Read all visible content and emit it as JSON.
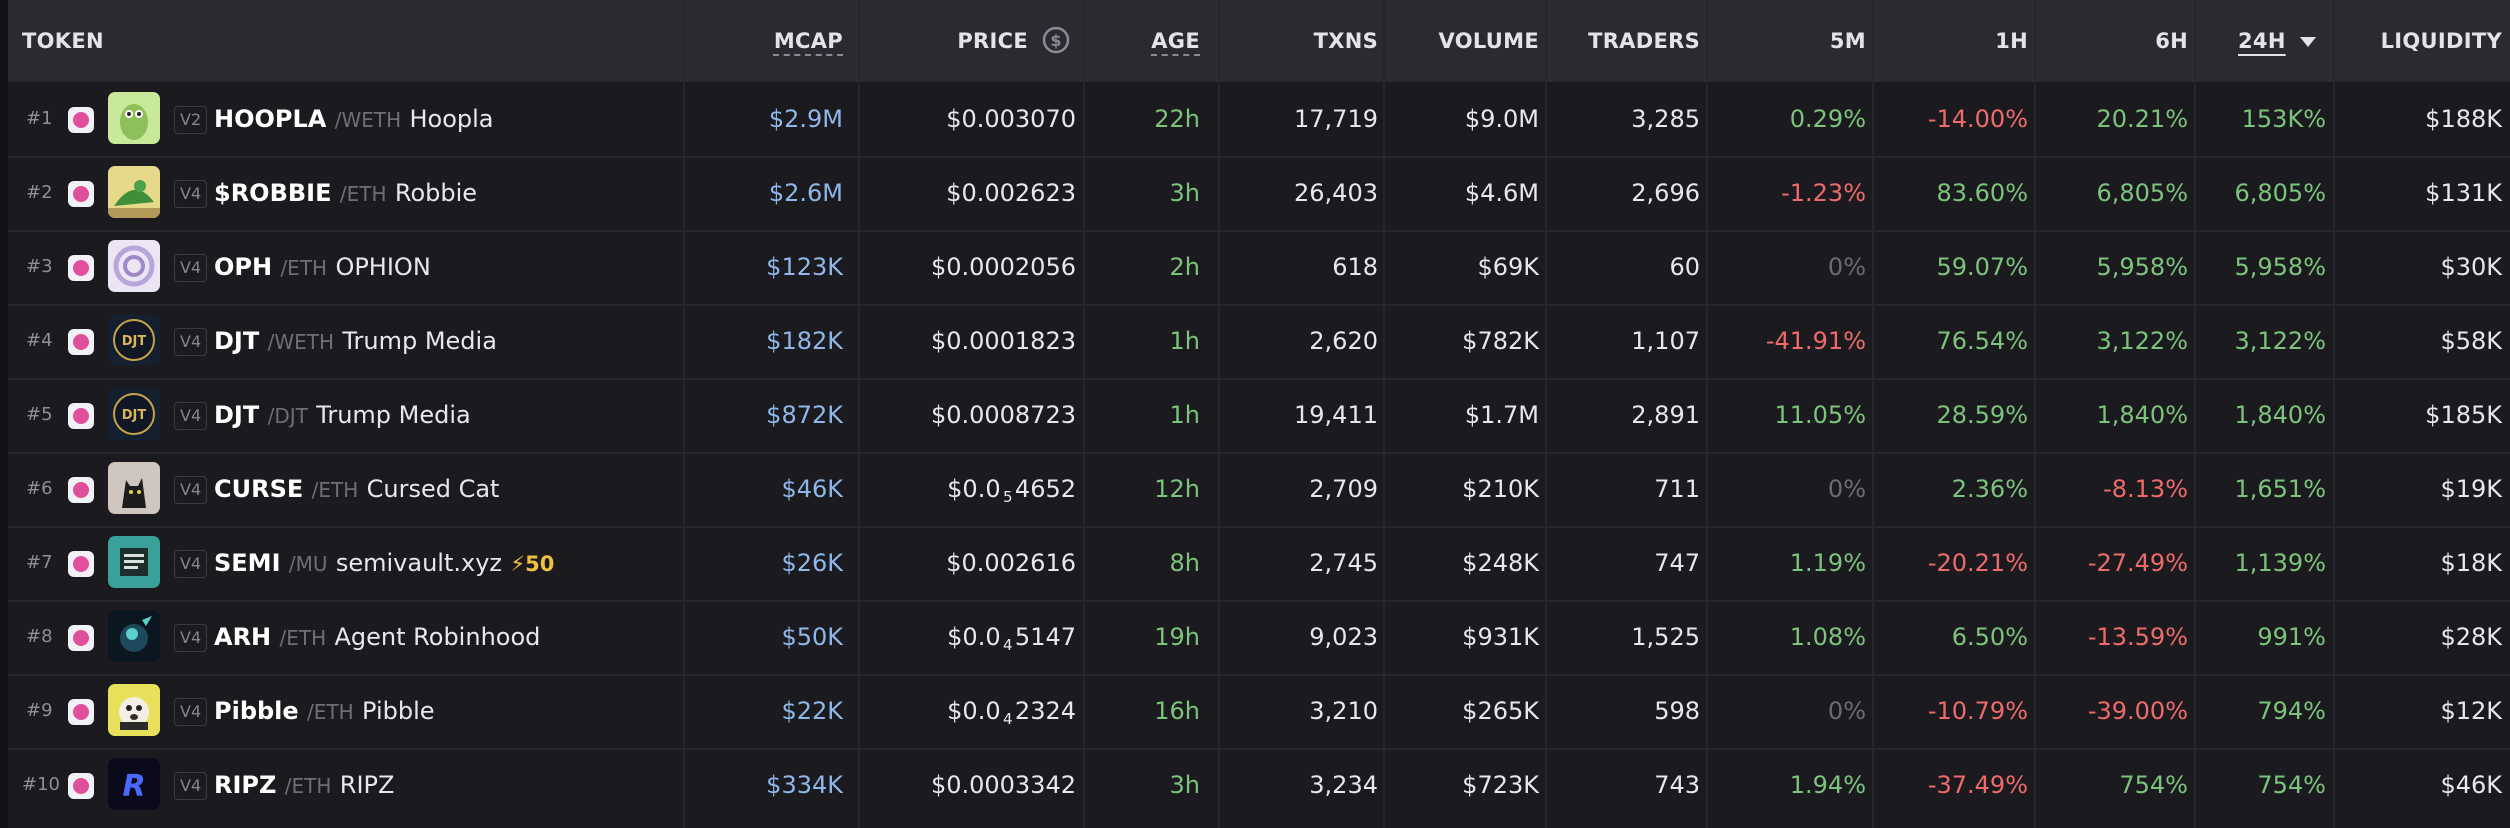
{
  "header": {
    "token": "TOKEN",
    "mcap": "MCAP",
    "price": "PRICE",
    "price_icon": "dollar-circle-icon",
    "age": "AGE",
    "txns": "TXNS",
    "volume": "VOLUME",
    "traders": "TRADERS",
    "m5": "5M",
    "h1": "1H",
    "h6": "6H",
    "h24": "24H",
    "sort_icon": "caret-down-icon",
    "liquidity": "LIQUIDITY"
  },
  "rows": [
    {
      "rank": "#1",
      "dex_icon": "uniswap-icon",
      "version": "V2",
      "symbol": "HOOPLA",
      "pair": "/WETH",
      "name": "Hoopla",
      "mcap": "$2.9M",
      "price": "$0.003070",
      "age": "22h",
      "txns": "17,719",
      "volume": "$9.0M",
      "traders": "3,285",
      "m5": "0.29%",
      "h1": "-14.00%",
      "h6": "20.21%",
      "h24": "153K%",
      "liquidity": "$188K"
    },
    {
      "rank": "#2",
      "dex_icon": "uniswap-icon",
      "version": "V4",
      "symbol": "$ROBBIE",
      "pair": "/ETH",
      "name": "Robbie",
      "mcap": "$2.6M",
      "price": "$0.002623",
      "age": "3h",
      "txns": "26,403",
      "volume": "$4.6M",
      "traders": "2,696",
      "m5": "-1.23%",
      "h1": "83.60%",
      "h6": "6,805%",
      "h24": "6,805%",
      "liquidity": "$131K"
    },
    {
      "rank": "#3",
      "dex_icon": "uniswap-icon",
      "version": "V4",
      "symbol": "OPH",
      "pair": "/ETH",
      "name": "OPHION",
      "mcap": "$123K",
      "price": "$0.0002056",
      "age": "2h",
      "txns": "618",
      "volume": "$69K",
      "traders": "60",
      "m5": "0%",
      "h1": "59.07%",
      "h6": "5,958%",
      "h24": "5,958%",
      "liquidity": "$30K"
    },
    {
      "rank": "#4",
      "dex_icon": "uniswap-icon",
      "version": "V4",
      "symbol": "DJT",
      "pair": "/WETH",
      "name": "Trump Media",
      "mcap": "$182K",
      "price": "$0.0001823",
      "age": "1h",
      "txns": "2,620",
      "volume": "$782K",
      "traders": "1,107",
      "m5": "-41.91%",
      "h1": "76.54%",
      "h6": "3,122%",
      "h24": "3,122%",
      "liquidity": "$58K"
    },
    {
      "rank": "#5",
      "dex_icon": "uniswap-icon",
      "version": "V4",
      "symbol": "DJT",
      "pair": "/DJT",
      "name": "Trump Media",
      "mcap": "$872K",
      "price": "$0.0008723",
      "age": "1h",
      "txns": "19,411",
      "volume": "$1.7M",
      "traders": "2,891",
      "m5": "11.05%",
      "h1": "28.59%",
      "h6": "1,840%",
      "h24": "1,840%",
      "liquidity": "$185K"
    },
    {
      "rank": "#6",
      "dex_icon": "uniswap-icon",
      "version": "V4",
      "symbol": "CURSE",
      "pair": "/ETH",
      "name": "Cursed Cat",
      "mcap": "$46K",
      "price_pre": "$0.0",
      "price_sub": "5",
      "price_post": "4652",
      "age": "12h",
      "txns": "2,709",
      "volume": "$210K",
      "traders": "711",
      "m5": "0%",
      "h1": "2.36%",
      "h6": "-8.13%",
      "h24": "1,651%",
      "liquidity": "$19K"
    },
    {
      "rank": "#7",
      "dex_icon": "uniswap-icon",
      "version": "V4",
      "symbol": "SEMI",
      "pair": "/MU",
      "name": "semivault.xyz",
      "boost": "50",
      "mcap": "$26K",
      "price": "$0.002616",
      "age": "8h",
      "txns": "2,745",
      "volume": "$248K",
      "traders": "747",
      "m5": "1.19%",
      "h1": "-20.21%",
      "h6": "-27.49%",
      "h24": "1,139%",
      "liquidity": "$18K"
    },
    {
      "rank": "#8",
      "dex_icon": "uniswap-icon",
      "version": "V4",
      "symbol": "ARH",
      "pair": "/ETH",
      "name": "Agent Robinhood",
      "mcap": "$50K",
      "price_pre": "$0.0",
      "price_sub": "4",
      "price_post": "5147",
      "age": "19h",
      "txns": "9,023",
      "volume": "$931K",
      "traders": "1,525",
      "m5": "1.08%",
      "h1": "6.50%",
      "h6": "-13.59%",
      "h24": "991%",
      "liquidity": "$28K"
    },
    {
      "rank": "#9",
      "dex_icon": "uniswap-icon",
      "version": "V4",
      "symbol": "Pibble",
      "pair": "/ETH",
      "name": "Pibble",
      "mcap": "$22K",
      "price_pre": "$0.0",
      "price_sub": "4",
      "price_post": "2324",
      "age": "16h",
      "txns": "3,210",
      "volume": "$265K",
      "traders": "598",
      "m5": "0%",
      "h1": "-10.79%",
      "h6": "-39.00%",
      "h24": "794%",
      "liquidity": "$12K"
    },
    {
      "rank": "#10",
      "dex_icon": "uniswap-icon",
      "version": "V4",
      "symbol": "RIPZ",
      "pair": "/ETH",
      "name": "RIPZ",
      "mcap": "$334K",
      "price": "$0.0003342",
      "age": "3h",
      "txns": "3,234",
      "volume": "$723K",
      "traders": "743",
      "m5": "1.94%",
      "h1": "-37.49%",
      "h6": "754%",
      "h24": "754%",
      "liquidity": "$46K"
    }
  ],
  "colors": {
    "positive": "#7cc47c",
    "negative": "#ef6b6b",
    "neutral": "#6b6b72",
    "mcap_blue": "#8fb7e8"
  }
}
